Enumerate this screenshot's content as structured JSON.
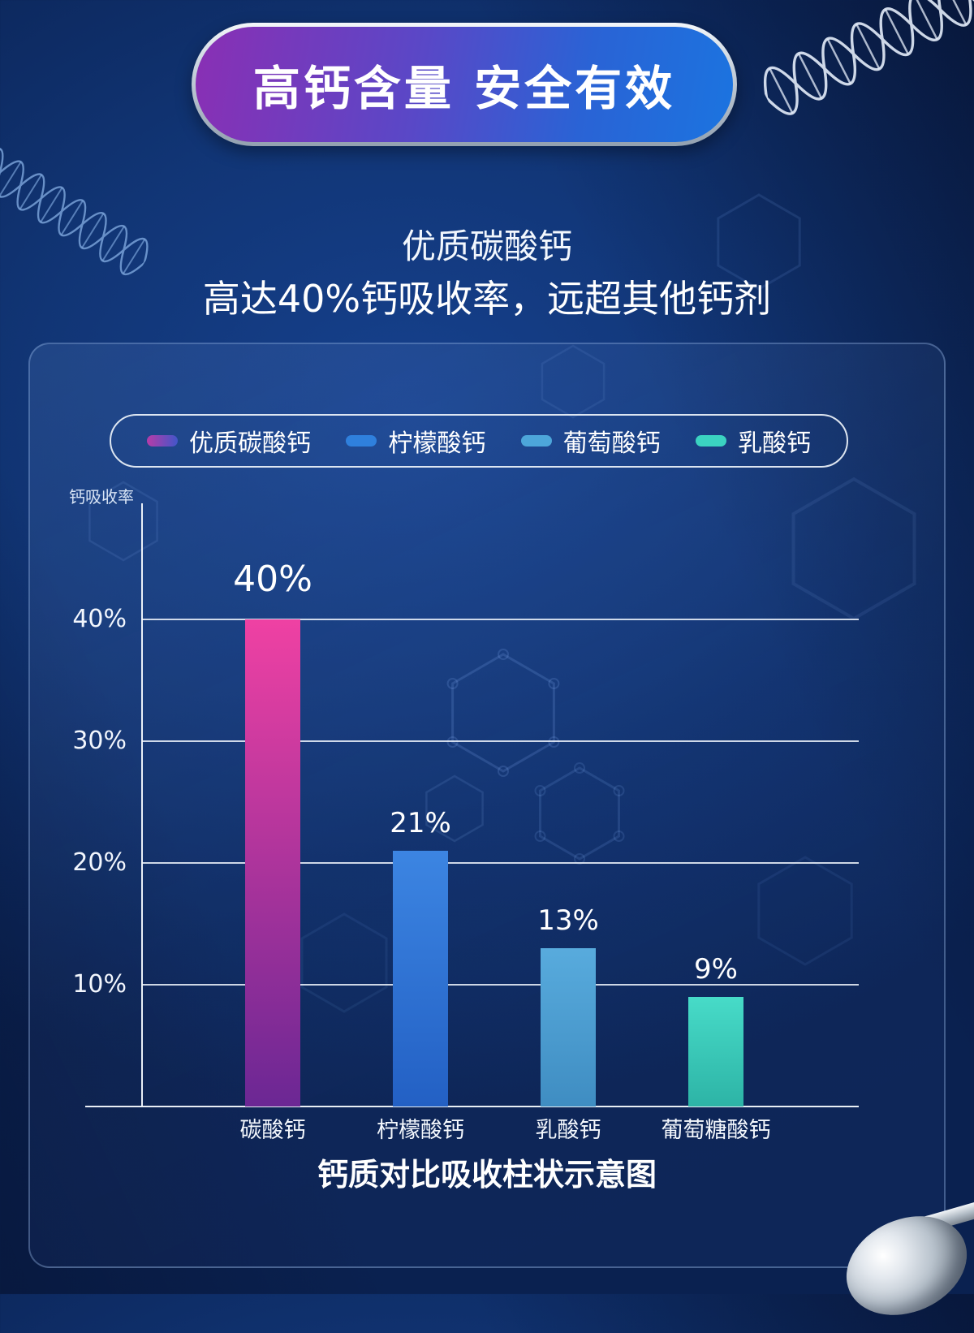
{
  "colors": {
    "background_center": "#16418e",
    "background_edge": "#0a2150",
    "badge_gradient_start": "#8a2fb4",
    "badge_gradient_end": "#1b74e0",
    "badge_border_silver": "#c9d3de",
    "panel_border": "#a5c6f0",
    "axis_line": "#f6fafe",
    "text": "#ffffff"
  },
  "badge": {
    "title": "高钙含量 安全有效"
  },
  "intro": {
    "line1": "优质碳酸钙",
    "line2": "高达40%钙吸收率，远超其他钙剂"
  },
  "legend": {
    "items": [
      {
        "label": "优质碳酸钙",
        "colors": [
          "#b73ca8",
          "#4156c9"
        ]
      },
      {
        "label": "柠檬酸钙",
        "colors": [
          "#2f80dd"
        ]
      },
      {
        "label": "葡萄酸钙",
        "colors": [
          "#4da6da"
        ]
      },
      {
        "label": "乳酸钙",
        "colors": [
          "#3bd3c1"
        ]
      }
    ]
  },
  "chart_data": {
    "type": "bar",
    "title": "钙质对比吸收柱状示意图",
    "ylabel": "钙吸收率",
    "xlabel": "",
    "categories": [
      "碳酸钙",
      "柠檬酸钙",
      "乳酸钙",
      "葡萄糖酸钙"
    ],
    "values": [
      40,
      21,
      13,
      9
    ],
    "value_labels": [
      "40%",
      "21%",
      "13%",
      "9%"
    ],
    "yticks": [
      40,
      30,
      20,
      10
    ],
    "ytick_labels": [
      "40%",
      "30%",
      "20%",
      "10%"
    ],
    "ylim": [
      0,
      49
    ],
    "grid": true,
    "legend_position": "top",
    "bar_colors": [
      [
        "#ef41a3",
        "#6b2794"
      ],
      [
        "#3c85e2",
        "#2360c4"
      ],
      [
        "#58abdd",
        "#3f8dc2"
      ],
      [
        "#47dbc8",
        "#2db4a6"
      ]
    ]
  }
}
